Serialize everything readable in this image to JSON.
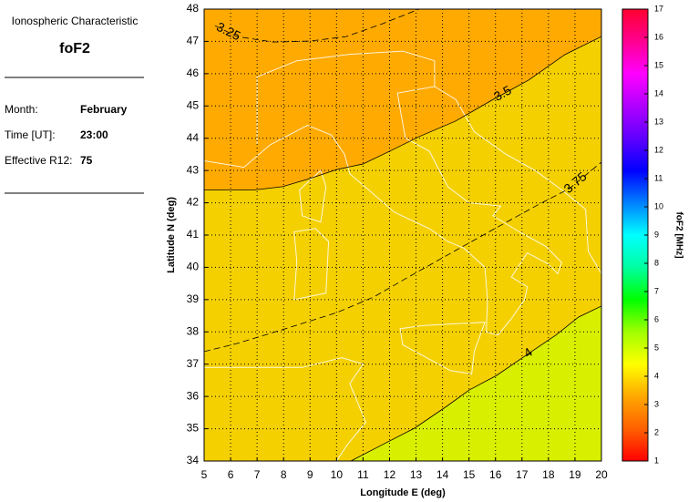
{
  "info": {
    "heading": "Ionospheric Characteristic",
    "parameter": "foF2",
    "fields": [
      {
        "label": "Month:",
        "value": "February"
      },
      {
        "label": "Time [UT]:",
        "value": "23:00"
      },
      {
        "label": "Effective R12:",
        "value": "75"
      }
    ]
  },
  "chart_data": {
    "type": "contour",
    "xlabel": "Longitude E (deg)",
    "ylabel": "Latitude N (deg)",
    "xlim": [
      5,
      20
    ],
    "xticks": [
      5,
      6,
      7,
      8,
      9,
      10,
      11,
      12,
      13,
      14,
      15,
      16,
      17,
      18,
      19,
      20
    ],
    "ylim": [
      34,
      48
    ],
    "yticks": [
      34,
      35,
      36,
      37,
      38,
      39,
      40,
      41,
      42,
      43,
      44,
      45,
      46,
      47,
      48
    ],
    "grid": true,
    "plot_background": "#f4d000",
    "contours": [
      {
        "level": 3.25,
        "style": "dashed",
        "x": [
          5.41,
          6.24,
          7.61,
          8.99,
          10.37,
          11.74,
          13.12
        ],
        "y": [
          47.49,
          47.15,
          46.98,
          47.01,
          47.15,
          47.55,
          48
        ]
      },
      {
        "level": 3.5,
        "style": "solid",
        "fill": "#ffaa00",
        "fill_side": "above",
        "x": [
          5,
          6.93,
          7.96,
          8.99,
          10.0,
          10.99,
          12.09,
          13.12,
          14.49,
          15.87,
          17.25,
          18.62,
          20
        ],
        "y": [
          42.4,
          42.4,
          42.5,
          42.75,
          43.03,
          43.2,
          43.63,
          44.05,
          44.53,
          45.18,
          45.8,
          46.59,
          47.15
        ]
      },
      {
        "level": 3.75,
        "style": "dashed",
        "x": [
          5,
          6.24,
          7.96,
          10.02,
          11.4,
          12.95,
          14.49,
          16.04,
          17.59,
          18.79,
          20
        ],
        "y": [
          37.39,
          37.64,
          38.07,
          38.6,
          39.08,
          39.81,
          40.52,
          41.23,
          41.93,
          42.44,
          43.26
        ]
      },
      {
        "level": 4,
        "style": "solid",
        "fill": "#d9ef00",
        "fill_side": "below",
        "x": [
          10.54,
          11.74,
          12.95,
          14.15,
          15.01,
          16.04,
          17.25,
          18.28,
          19.14,
          20
        ],
        "y": [
          34,
          34.51,
          35.02,
          35.69,
          36.2,
          36.65,
          37.33,
          37.9,
          38.46,
          38.8
        ]
      }
    ],
    "colorbar": {
      "label": "foF2 [MHz]",
      "lim": [
        1,
        17
      ],
      "ticks": [
        1,
        2,
        3,
        4,
        5,
        6,
        7,
        8,
        9,
        10,
        11,
        12,
        13,
        14,
        15,
        16,
        17
      ],
      "colors": [
        "#ff0000",
        "#ff6000",
        "#ffa800",
        "#ffff00",
        "#a0ff00",
        "#00ff00",
        "#00ffa0",
        "#00ffff",
        "#0080ff",
        "#0000ff",
        "#6000ff",
        "#b000ff",
        "#ff00ff",
        "#ff0090",
        "#ff0030"
      ]
    }
  }
}
